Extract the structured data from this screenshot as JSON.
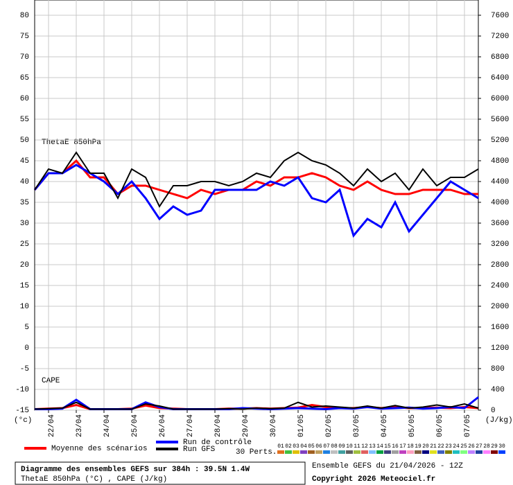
{
  "chart_data": {
    "type": "line",
    "label_theta": "ThetaE 850hPa",
    "label_cape": "CAPE",
    "ylabel": "(°c)",
    "y2label": "(J/kg)",
    "xlim": [
      0,
      384
    ],
    "ylim": [
      -15,
      80
    ],
    "y2lim": [
      0,
      7600
    ],
    "grid": true,
    "yticks": [
      -15,
      -10,
      -5,
      0,
      5,
      10,
      15,
      20,
      25,
      30,
      35,
      40,
      45,
      50,
      55,
      60,
      65,
      70,
      75,
      80
    ],
    "y2ticks": [
      0,
      400,
      800,
      1200,
      1600,
      2000,
      2400,
      2800,
      3200,
      3600,
      4000,
      4400,
      4800,
      5200,
      5600,
      6000,
      6400,
      6800,
      7200,
      7600
    ],
    "xticks": [
      {
        "value": 12,
        "label": "22/04"
      },
      {
        "value": 36,
        "label": "23/04"
      },
      {
        "value": 60,
        "label": "24/04"
      },
      {
        "value": 84,
        "label": "25/04"
      },
      {
        "value": 108,
        "label": "26/04"
      },
      {
        "value": 132,
        "label": "27/04"
      },
      {
        "value": 156,
        "label": "28/04"
      },
      {
        "value": 180,
        "label": "29/04"
      },
      {
        "value": 204,
        "label": "30/04"
      },
      {
        "value": 228,
        "label": "01/05"
      },
      {
        "value": 252,
        "label": "02/05"
      },
      {
        "value": 276,
        "label": "03/05"
      },
      {
        "value": 300,
        "label": "04/05"
      },
      {
        "value": 324,
        "label": "05/05"
      },
      {
        "value": 348,
        "label": "06/05"
      },
      {
        "value": 372,
        "label": "07/05"
      }
    ],
    "x": [
      0,
      12,
      24,
      36,
      48,
      60,
      72,
      84,
      96,
      108,
      120,
      132,
      144,
      156,
      168,
      180,
      192,
      204,
      216,
      228,
      240,
      252,
      264,
      276,
      288,
      300,
      312,
      324,
      336,
      348,
      360,
      372,
      384
    ],
    "series": [
      {
        "name": "Moyenne des scénarios",
        "color": "#ff0000",
        "values": [
          38,
          42,
          42,
          45,
          41,
          41,
          37,
          39,
          39,
          38,
          37,
          36,
          38,
          37,
          38,
          38,
          40,
          39,
          41,
          41,
          42,
          41,
          39,
          38,
          40,
          38,
          37,
          37,
          38,
          38,
          38,
          37,
          37
        ]
      },
      {
        "name": "Run de contrôle",
        "color": "#0000ff",
        "values": [
          38,
          42,
          42,
          44,
          42,
          40,
          37,
          40,
          36,
          31,
          34,
          32,
          33,
          38,
          38,
          38,
          38,
          40,
          39,
          41,
          36,
          35,
          38,
          27,
          31,
          29,
          35,
          28,
          32,
          36,
          40,
          38,
          36
        ]
      },
      {
        "name": "Run GFS",
        "color": "#000000",
        "values": [
          38,
          43,
          42,
          47,
          42,
          42,
          36,
          43,
          41,
          34,
          39,
          39,
          40,
          40,
          39,
          40,
          42,
          41,
          45,
          47,
          45,
          44,
          42,
          39,
          43,
          40,
          42,
          38,
          43,
          39,
          41,
          41,
          43
        ]
      },
      {
        "color": "#ff0000",
        "axis": "y2",
        "values": [
          20,
          30,
          40,
          100,
          20,
          20,
          20,
          30,
          90,
          40,
          30,
          20,
          20,
          20,
          30,
          30,
          40,
          30,
          40,
          50,
          100,
          60,
          40,
          40,
          60,
          40,
          60,
          40,
          40,
          50,
          40,
          60,
          40
        ]
      },
      {
        "color": "#0000ff",
        "axis": "y2",
        "values": [
          20,
          20,
          30,
          200,
          20,
          20,
          20,
          20,
          150,
          60,
          20,
          20,
          20,
          20,
          20,
          40,
          30,
          20,
          30,
          40,
          30,
          20,
          40,
          30,
          60,
          30,
          40,
          50,
          30,
          40,
          60,
          40,
          250
        ]
      },
      {
        "color": "#000000",
        "axis": "y2",
        "values": [
          20,
          30,
          40,
          150,
          20,
          20,
          20,
          20,
          120,
          80,
          20,
          20,
          20,
          20,
          30,
          20,
          40,
          30,
          40,
          150,
          60,
          80,
          60,
          40,
          80,
          40,
          90,
          40,
          60,
          100,
          60,
          120,
          40
        ]
      }
    ],
    "perturbations_label": "30 Perts.",
    "perturbations": [
      {
        "name": "01",
        "color": "#e07020"
      },
      {
        "name": "02",
        "color": "#40c040"
      },
      {
        "name": "03",
        "color": "#e0c000"
      },
      {
        "name": "04",
        "color": "#8040c0"
      },
      {
        "name": "05",
        "color": "#a06020"
      },
      {
        "name": "06",
        "color": "#c0a060"
      },
      {
        "name": "07",
        "color": "#2080e0"
      },
      {
        "name": "08",
        "color": "#c0c0c0"
      },
      {
        "name": "09",
        "color": "#40a0a0"
      },
      {
        "name": "10",
        "color": "#606060"
      },
      {
        "name": "11",
        "color": "#a0c040"
      },
      {
        "name": "12",
        "color": "#e06060"
      },
      {
        "name": "13",
        "color": "#80c0ff"
      },
      {
        "name": "14",
        "color": "#00a040"
      },
      {
        "name": "15",
        "color": "#404080"
      },
      {
        "name": "16",
        "color": "#a0a0a0"
      },
      {
        "name": "17",
        "color": "#c040c0"
      },
      {
        "name": "18",
        "color": "#ffa0c0"
      },
      {
        "name": "19",
        "color": "#806040"
      },
      {
        "name": "20",
        "color": "#000080"
      },
      {
        "name": "21",
        "color": "#e0e020"
      },
      {
        "name": "22",
        "color": "#4060c0"
      },
      {
        "name": "23",
        "color": "#808000"
      },
      {
        "name": "24",
        "color": "#20c0c0"
      },
      {
        "name": "25",
        "color": "#80ff80"
      },
      {
        "name": "26",
        "color": "#c080ff"
      },
      {
        "name": "27",
        "color": "#2040a0"
      },
      {
        "name": "28",
        "color": "#ff80ff"
      },
      {
        "name": "29",
        "color": "#800000"
      },
      {
        "name": "30",
        "color": "#0040ff"
      }
    ],
    "footer": {
      "title": "Diagramme des ensembles GEFS sur 384h : 39.5N 1.4W",
      "subtitle": "ThetaE 850hPa (°C) , CAPE (J/kg)",
      "run": "Ensemble GEFS du 21/04/2026 - 12Z",
      "copyright": "Copyright 2026 Meteociel.fr"
    }
  }
}
